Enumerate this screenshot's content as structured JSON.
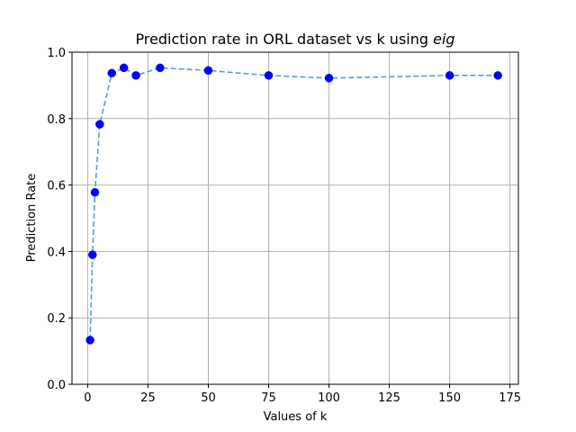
{
  "chart_data": {
    "type": "line",
    "title_main": "Prediction rate in ORL dataset vs k using ",
    "title_emph": "eig",
    "xlabel": "Values of k",
    "ylabel": "Prediction Rate",
    "xlim": [
      -6.5,
      178.5
    ],
    "ylim": [
      0.0,
      1.0
    ],
    "x_ticks": [
      0,
      25,
      50,
      75,
      100,
      125,
      150,
      175
    ],
    "y_ticks": [
      0.0,
      0.2,
      0.4,
      0.6,
      0.8,
      1.0
    ],
    "x_tick_labels": [
      "0",
      "25",
      "50",
      "75",
      "100",
      "125",
      "150",
      "175"
    ],
    "y_tick_labels": [
      "0.0",
      "0.2",
      "0.4",
      "0.6",
      "0.8",
      "1.0"
    ],
    "grid": true,
    "series": [
      {
        "x": [
          1,
          2,
          3,
          5,
          10,
          15,
          20,
          30,
          50,
          75,
          100,
          150,
          170
        ],
        "y": [
          0.133,
          0.39,
          0.578,
          0.783,
          0.937,
          0.953,
          0.93,
          0.953,
          0.945,
          0.93,
          0.922,
          0.93,
          0.93
        ],
        "line_color": "#5b9fcf",
        "line_style": "dashed",
        "marker_color": "#0000ff",
        "marker": "circle"
      }
    ]
  }
}
